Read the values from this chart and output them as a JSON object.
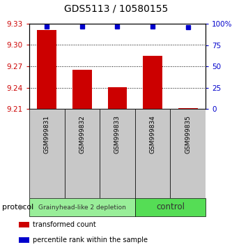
{
  "title": "GDS5113 / 10580155",
  "samples": [
    "GSM999831",
    "GSM999832",
    "GSM999833",
    "GSM999834",
    "GSM999835"
  ],
  "bar_values": [
    9.321,
    9.265,
    9.24,
    9.285,
    9.211
  ],
  "percentile_values": [
    97,
    97,
    97,
    97,
    96
  ],
  "bar_color": "#cc0000",
  "dot_color": "#0000cc",
  "y_min": 9.21,
  "y_max": 9.33,
  "y_ticks": [
    9.21,
    9.24,
    9.27,
    9.3,
    9.33
  ],
  "y_tick_labels": [
    "9.21",
    "9.24",
    "9.27",
    "9.30",
    "9.33"
  ],
  "y2_ticks": [
    0,
    25,
    50,
    75,
    100
  ],
  "y2_tick_labels": [
    "0",
    "25",
    "50",
    "75",
    "100%"
  ],
  "groups": [
    {
      "label": "Grainyhead-like 2 depletion",
      "color": "#99ee99",
      "n_samples": 3
    },
    {
      "label": "control",
      "color": "#55dd55",
      "n_samples": 2
    }
  ],
  "protocol_label": "protocol",
  "legend_items": [
    {
      "color": "#cc0000",
      "label": "transformed count"
    },
    {
      "color": "#0000cc",
      "label": "percentile rank within the sample"
    }
  ],
  "bar_base": 9.21,
  "ylabel_left_color": "#cc0000",
  "ylabel_right_color": "#0000cc"
}
